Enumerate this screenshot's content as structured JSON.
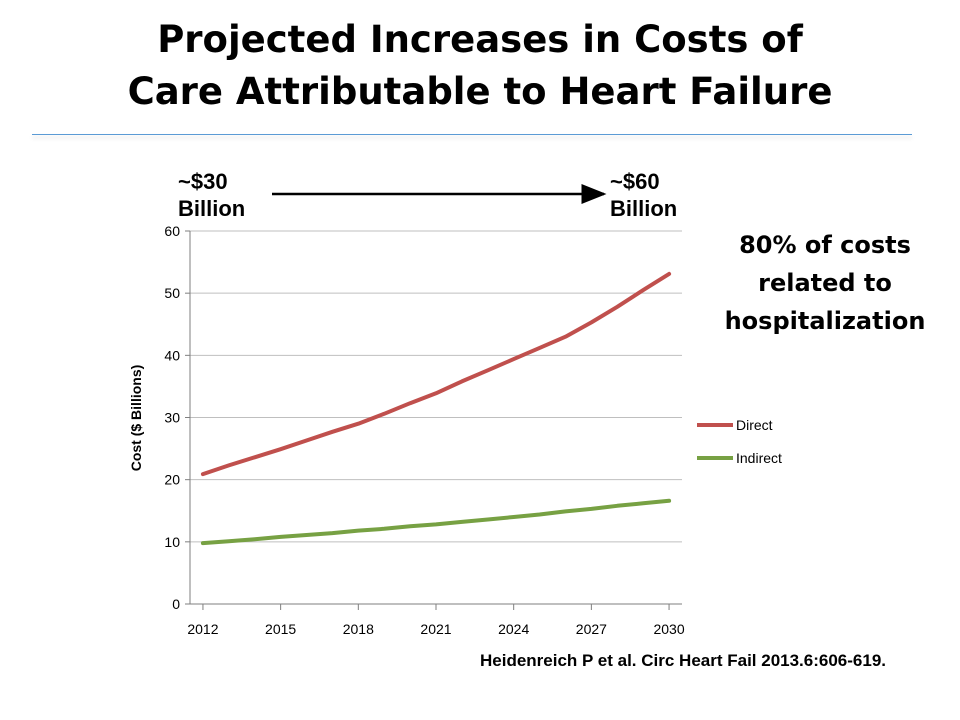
{
  "slide": {
    "title_line1": "Projected Increases in Costs of",
    "title_line2": "Care Attributable to Heart Failure",
    "annotation_start_line1": "~$30",
    "annotation_start_line2": "Billion",
    "annotation_end_line1": "~$60",
    "annotation_end_line2": "Billion",
    "callout_line1": "80% of costs",
    "callout_line2": "related to",
    "callout_line3": "hospitalization",
    "citation": "Heidenreich P et al. Circ Heart Fail 2013.6:606-619."
  },
  "colors": {
    "direct": "#c0504d",
    "indirect": "#77a143",
    "grid": "#bfbfbf",
    "axis": "#7f7f7f",
    "title_rule": "#5b9bd5"
  },
  "chart_data": {
    "type": "line",
    "title": "",
    "xlabel": "",
    "ylabel": "Cost ($ Billions)",
    "ylim": [
      0,
      60
    ],
    "yticks": [
      0,
      10,
      20,
      30,
      40,
      50,
      60
    ],
    "xlim": [
      2011.5,
      2030.5
    ],
    "xticks": [
      2012,
      2015,
      2018,
      2021,
      2024,
      2027,
      2030
    ],
    "grid": true,
    "legend_position": "right",
    "series": [
      {
        "name": "Direct",
        "x": [
          2012,
          2013,
          2014,
          2015,
          2016,
          2017,
          2018,
          2019,
          2020,
          2021,
          2022,
          2023,
          2024,
          2025,
          2026,
          2027,
          2028,
          2029,
          2030
        ],
        "values": [
          20.9,
          22.3,
          23.6,
          24.9,
          26.3,
          27.7,
          29.0,
          30.6,
          32.3,
          33.9,
          35.8,
          37.6,
          39.4,
          41.2,
          43.0,
          45.3,
          47.8,
          50.5,
          53.1
        ]
      },
      {
        "name": "Indirect",
        "x": [
          2012,
          2013,
          2014,
          2015,
          2016,
          2017,
          2018,
          2019,
          2020,
          2021,
          2022,
          2023,
          2024,
          2025,
          2026,
          2027,
          2028,
          2029,
          2030
        ],
        "values": [
          9.8,
          10.1,
          10.4,
          10.8,
          11.1,
          11.4,
          11.8,
          12.1,
          12.5,
          12.8,
          13.2,
          13.6,
          14.0,
          14.4,
          14.9,
          15.3,
          15.8,
          16.2,
          16.6
        ]
      }
    ]
  }
}
